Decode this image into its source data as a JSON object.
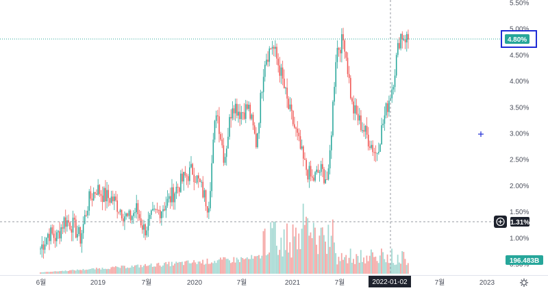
{
  "chart_data": {
    "type": "candlestick",
    "y_axis_ticks": [
      "5.50%",
      "5.00%",
      "4.50%",
      "4.00%",
      "3.50%",
      "3.00%",
      "2.50%",
      "2.00%",
      "1.50%",
      "1.00%",
      "0.50%"
    ],
    "y_axis_values": [
      5.5,
      5.0,
      4.5,
      4.0,
      3.5,
      3.0,
      2.5,
      2.0,
      1.5,
      1.0,
      0.5
    ],
    "x_axis_labels": [
      "6월",
      "2019",
      "7월",
      "2020",
      "7월",
      "2021",
      "7월",
      "2022-01-02",
      "7월",
      "2023"
    ],
    "ylim": [
      0.5,
      5.5
    ],
    "price_series": [
      {
        "date": "2018-05",
        "close": 0.8
      },
      {
        "date": "2018-06",
        "close": 1.1
      },
      {
        "date": "2018-07",
        "close": 1.0
      },
      {
        "date": "2018-08",
        "close": 1.35
      },
      {
        "date": "2018-09",
        "close": 1.25
      },
      {
        "date": "2018-10",
        "close": 1.0
      },
      {
        "date": "2018-11",
        "close": 1.7
      },
      {
        "date": "2018-12",
        "close": 1.95
      },
      {
        "date": "2019-01",
        "close": 1.8
      },
      {
        "date": "2019-02",
        "close": 1.75
      },
      {
        "date": "2019-03",
        "close": 1.55
      },
      {
        "date": "2019-04",
        "close": 1.35
      },
      {
        "date": "2019-05",
        "close": 1.55
      },
      {
        "date": "2019-06",
        "close": 1.15
      },
      {
        "date": "2019-07",
        "close": 1.4
      },
      {
        "date": "2019-08",
        "close": 1.55
      },
      {
        "date": "2019-09",
        "close": 1.7
      },
      {
        "date": "2019-10",
        "close": 1.95
      },
      {
        "date": "2019-11",
        "close": 2.15
      },
      {
        "date": "2019-12",
        "close": 2.3
      },
      {
        "date": "2020-01",
        "close": 2.0
      },
      {
        "date": "2020-02",
        "close": 1.6
      },
      {
        "date": "2020-03",
        "close": 3.5
      },
      {
        "date": "2020-04",
        "close": 2.5
      },
      {
        "date": "2020-05",
        "close": 3.6
      },
      {
        "date": "2020-06",
        "close": 3.4
      },
      {
        "date": "2020-07",
        "close": 3.5
      },
      {
        "date": "2020-08",
        "close": 2.8
      },
      {
        "date": "2020-09",
        "close": 4.4
      },
      {
        "date": "2020-10",
        "close": 4.7
      },
      {
        "date": "2020-11",
        "close": 4.2
      },
      {
        "date": "2020-12",
        "close": 3.5
      },
      {
        "date": "2021-01",
        "close": 3.0
      },
      {
        "date": "2021-02",
        "close": 2.4
      },
      {
        "date": "2021-03",
        "close": 2.1
      },
      {
        "date": "2021-04",
        "close": 2.3
      },
      {
        "date": "2021-05",
        "close": 2.1
      },
      {
        "date": "2021-06",
        "close": 4.6
      },
      {
        "date": "2021-07",
        "close": 4.8
      },
      {
        "date": "2021-08",
        "close": 3.5
      },
      {
        "date": "2021-09",
        "close": 3.2
      },
      {
        "date": "2021-10",
        "close": 2.9
      },
      {
        "date": "2021-11",
        "close": 2.6
      },
      {
        "date": "2021-12",
        "close": 3.3
      },
      {
        "date": "2022-01",
        "close": 3.9
      },
      {
        "date": "2022-02",
        "close": 4.9
      },
      {
        "date": "2022-03",
        "close": 4.8
      }
    ],
    "volume_series_note": "",
    "crosshair_date": "2022-01-02",
    "crosshair_value": "1.31%",
    "last_value_badge": "4.80%",
    "volume_badge": "196.483B"
  },
  "colors": {
    "up": "#26a69a",
    "down": "#ef5350",
    "volume_up": "#a5d9d3",
    "volume_down": "#f5a7a5",
    "badge_last": "#26a69a",
    "badge_crosshair": "#1e222d",
    "highlight_box": "#1d2bd6",
    "crosshair_marker": "#1d2bd6"
  },
  "icons": {
    "settings": "gear-icon",
    "add_alert": "plus-circle-icon",
    "cursor": "plus-icon"
  },
  "watermark_text": ""
}
